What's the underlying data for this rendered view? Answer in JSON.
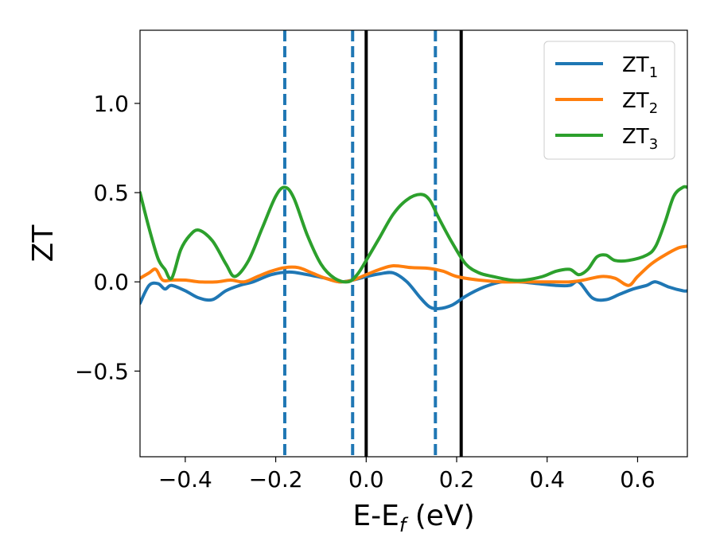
{
  "chart_data": {
    "type": "line",
    "xlabel": {
      "main": "E-E",
      "sub": "f",
      "rest": " (eV)"
    },
    "ylabel": "ZT",
    "xlim": [
      -0.5,
      0.71
    ],
    "ylim": [
      -0.98,
      1.41
    ],
    "xticks": [
      -0.4,
      -0.2,
      0.0,
      0.2,
      0.4,
      0.6
    ],
    "xtick_labels": [
      "−0.4",
      "−0.2",
      "0.0",
      "0.2",
      "0.4",
      "0.6"
    ],
    "yticks": [
      -0.5,
      0.0,
      0.5,
      1.0
    ],
    "ytick_labels": [
      "−0.5",
      "0.0",
      "0.5",
      "1.0"
    ],
    "grid": false,
    "legend_position": "top-right",
    "series": [
      {
        "name": "ZT",
        "name_sub": "1",
        "color": "#1f77b4",
        "x": [
          -0.5,
          -0.48,
          -0.46,
          -0.445,
          -0.43,
          -0.4,
          -0.37,
          -0.34,
          -0.31,
          -0.28,
          -0.25,
          -0.21,
          -0.17,
          -0.13,
          -0.09,
          -0.06,
          -0.03,
          0.0,
          0.03,
          0.06,
          0.09,
          0.12,
          0.14,
          0.16,
          0.19,
          0.22,
          0.26,
          0.3,
          0.34,
          0.38,
          0.42,
          0.45,
          0.47,
          0.5,
          0.53,
          0.56,
          0.59,
          0.62,
          0.64,
          0.67,
          0.7,
          0.71
        ],
        "y": [
          -0.12,
          -0.02,
          -0.01,
          -0.04,
          -0.02,
          -0.05,
          -0.09,
          -0.1,
          -0.05,
          -0.02,
          0.0,
          0.04,
          0.055,
          0.04,
          0.02,
          0.0,
          0.01,
          0.03,
          0.045,
          0.05,
          0.0,
          -0.09,
          -0.14,
          -0.15,
          -0.13,
          -0.08,
          -0.03,
          0.0,
          0.0,
          -0.01,
          -0.02,
          -0.02,
          0.0,
          -0.09,
          -0.1,
          -0.07,
          -0.04,
          -0.02,
          0.0,
          -0.03,
          -0.05,
          -0.05
        ]
      },
      {
        "name": "ZT",
        "name_sub": "2",
        "color": "#ff7f0e",
        "x": [
          -0.5,
          -0.48,
          -0.465,
          -0.45,
          -0.43,
          -0.4,
          -0.37,
          -0.33,
          -0.3,
          -0.27,
          -0.24,
          -0.21,
          -0.18,
          -0.15,
          -0.12,
          -0.09,
          -0.06,
          -0.03,
          0.0,
          0.03,
          0.06,
          0.1,
          0.14,
          0.17,
          0.2,
          0.25,
          0.3,
          0.35,
          0.4,
          0.45,
          0.48,
          0.52,
          0.55,
          0.58,
          0.6,
          0.63,
          0.66,
          0.69,
          0.71
        ],
        "y": [
          0.02,
          0.05,
          0.07,
          0.01,
          0.01,
          0.01,
          0.0,
          0.0,
          0.01,
          0.0,
          0.03,
          0.06,
          0.08,
          0.08,
          0.05,
          0.02,
          0.0,
          0.01,
          0.04,
          0.07,
          0.09,
          0.08,
          0.075,
          0.06,
          0.03,
          0.01,
          0.0,
          0.0,
          0.0,
          0.0,
          0.01,
          0.03,
          0.02,
          -0.02,
          0.03,
          0.1,
          0.15,
          0.19,
          0.2
        ]
      },
      {
        "name": "ZT",
        "name_sub": "3",
        "color": "#2ca02c",
        "x": [
          -0.5,
          -0.48,
          -0.46,
          -0.445,
          -0.43,
          -0.41,
          -0.39,
          -0.37,
          -0.34,
          -0.31,
          -0.29,
          -0.26,
          -0.23,
          -0.2,
          -0.18,
          -0.16,
          -0.13,
          -0.1,
          -0.07,
          -0.04,
          -0.02,
          0.0,
          0.03,
          0.06,
          0.09,
          0.12,
          0.14,
          0.16,
          0.19,
          0.22,
          0.25,
          0.28,
          0.32,
          0.35,
          0.39,
          0.42,
          0.45,
          0.47,
          0.49,
          0.51,
          0.53,
          0.55,
          0.58,
          0.62,
          0.64,
          0.66,
          0.68,
          0.7,
          0.71
        ],
        "y": [
          0.5,
          0.3,
          0.13,
          0.07,
          0.02,
          0.18,
          0.26,
          0.29,
          0.23,
          0.1,
          0.03,
          0.12,
          0.3,
          0.48,
          0.53,
          0.47,
          0.26,
          0.1,
          0.02,
          0.0,
          0.04,
          0.12,
          0.25,
          0.38,
          0.46,
          0.49,
          0.46,
          0.36,
          0.22,
          0.1,
          0.05,
          0.03,
          0.01,
          0.01,
          0.03,
          0.06,
          0.07,
          0.04,
          0.07,
          0.14,
          0.15,
          0.12,
          0.12,
          0.15,
          0.2,
          0.33,
          0.48,
          0.53,
          0.53
        ]
      }
    ],
    "vlines": [
      {
        "x": -0.18,
        "style": "dashed",
        "color": "#1f77b4"
      },
      {
        "x": -0.03,
        "style": "dashed",
        "color": "#1f77b4"
      },
      {
        "x": 0.153,
        "style": "dashed",
        "color": "#1f77b4"
      },
      {
        "x": 0.0,
        "style": "solid",
        "color": "#000000"
      },
      {
        "x": 0.21,
        "style": "solid",
        "color": "#000000"
      }
    ]
  }
}
